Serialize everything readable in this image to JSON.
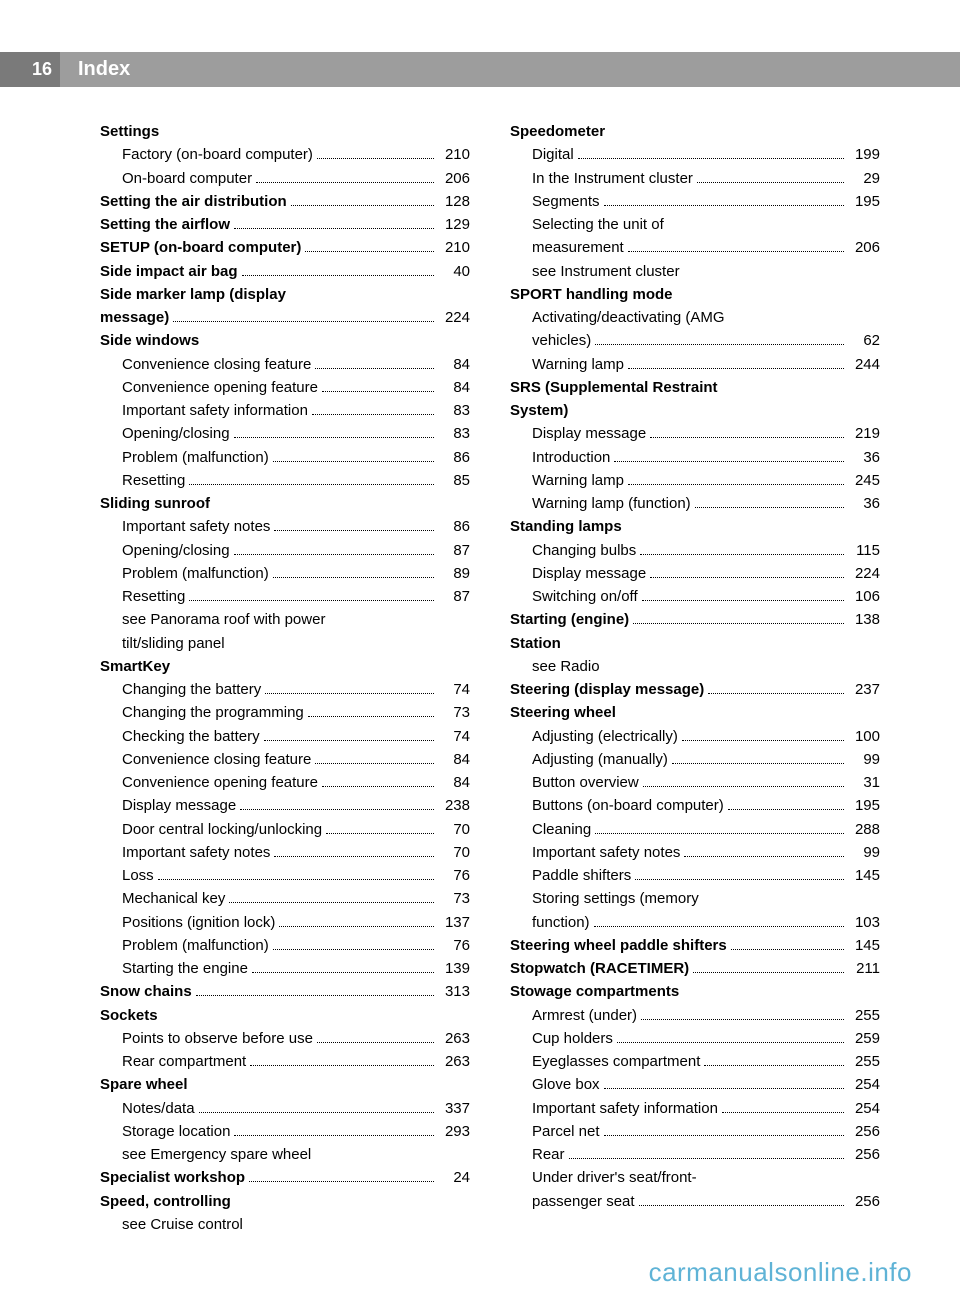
{
  "header": {
    "page_number": "16",
    "title": "Index"
  },
  "footer": "carmanualsonline.info",
  "columns": [
    [
      {
        "type": "heading",
        "label": "Settings"
      },
      {
        "type": "sub",
        "label": "Factory (on-board computer)",
        "page": "210"
      },
      {
        "type": "sub",
        "label": "On-board computer",
        "page": "206"
      },
      {
        "type": "bold",
        "label": "Setting the air distribution",
        "page": "128"
      },
      {
        "type": "bold",
        "label": "Setting the airflow",
        "page": "129"
      },
      {
        "type": "bold",
        "label": "SETUP (on-board computer)",
        "page": "210"
      },
      {
        "type": "bold",
        "label": "Side impact air bag",
        "page": "40"
      },
      {
        "type": "bold-nl",
        "label": "Side marker lamp (display"
      },
      {
        "type": "bold",
        "label": "message)",
        "page": "224"
      },
      {
        "type": "heading",
        "label": "Side windows"
      },
      {
        "type": "sub",
        "label": "Convenience closing feature",
        "page": "84"
      },
      {
        "type": "sub",
        "label": "Convenience opening feature",
        "page": "84"
      },
      {
        "type": "sub",
        "label": "Important safety information",
        "page": "83"
      },
      {
        "type": "sub",
        "label": "Opening/closing",
        "page": "83"
      },
      {
        "type": "sub",
        "label": "Problem (malfunction)",
        "page": "86"
      },
      {
        "type": "sub",
        "label": "Resetting",
        "page": "85"
      },
      {
        "type": "heading",
        "label": "Sliding sunroof"
      },
      {
        "type": "sub",
        "label": "Important safety notes",
        "page": "86"
      },
      {
        "type": "sub",
        "label": "Opening/closing",
        "page": "87"
      },
      {
        "type": "sub",
        "label": "Problem (malfunction)",
        "page": "89"
      },
      {
        "type": "sub",
        "label": "Resetting",
        "page": "87"
      },
      {
        "type": "xref",
        "label": "see Panorama roof with power"
      },
      {
        "type": "xref",
        "label": "tilt/sliding panel"
      },
      {
        "type": "heading",
        "label": "SmartKey"
      },
      {
        "type": "sub",
        "label": "Changing the battery",
        "page": "74"
      },
      {
        "type": "sub",
        "label": "Changing the programming",
        "page": "73"
      },
      {
        "type": "sub",
        "label": "Checking the battery",
        "page": "74"
      },
      {
        "type": "sub",
        "label": "Convenience closing feature",
        "page": "84"
      },
      {
        "type": "sub",
        "label": "Convenience opening feature",
        "page": "84"
      },
      {
        "type": "sub",
        "label": "Display message",
        "page": "238"
      },
      {
        "type": "sub",
        "label": "Door central locking/unlocking",
        "page": "70"
      },
      {
        "type": "sub",
        "label": "Important safety notes",
        "page": "70"
      },
      {
        "type": "sub",
        "label": "Loss",
        "page": "76"
      },
      {
        "type": "sub",
        "label": "Mechanical key",
        "page": "73"
      },
      {
        "type": "sub",
        "label": "Positions (ignition lock)",
        "page": "137"
      },
      {
        "type": "sub",
        "label": "Problem (malfunction)",
        "page": "76"
      },
      {
        "type": "sub",
        "label": "Starting the engine",
        "page": "139"
      },
      {
        "type": "bold",
        "label": "Snow chains",
        "page": "313"
      },
      {
        "type": "heading",
        "label": "Sockets"
      },
      {
        "type": "sub",
        "label": "Points to observe before use",
        "page": "263"
      },
      {
        "type": "sub",
        "label": "Rear compartment",
        "page": "263"
      },
      {
        "type": "heading",
        "label": "Spare wheel"
      },
      {
        "type": "sub",
        "label": "Notes/data",
        "page": "337"
      },
      {
        "type": "sub",
        "label": "Storage location",
        "page": "293"
      },
      {
        "type": "xref",
        "label": "see Emergency spare wheel"
      },
      {
        "type": "bold",
        "label": "Specialist workshop",
        "page": "24"
      },
      {
        "type": "heading",
        "label": "Speed, controlling"
      },
      {
        "type": "xref",
        "label": "see Cruise control"
      }
    ],
    [
      {
        "type": "heading",
        "label": "Speedometer"
      },
      {
        "type": "sub",
        "label": "Digital",
        "page": "199"
      },
      {
        "type": "sub",
        "label": "In the Instrument cluster",
        "page": "29"
      },
      {
        "type": "sub",
        "label": "Segments",
        "page": "195"
      },
      {
        "type": "sub-nl",
        "label": "Selecting the unit of"
      },
      {
        "type": "sub",
        "label": "measurement",
        "page": "206"
      },
      {
        "type": "xref",
        "label": "see Instrument cluster"
      },
      {
        "type": "heading",
        "label": "SPORT handling mode"
      },
      {
        "type": "sub-nl",
        "label": "Activating/deactivating (AMG"
      },
      {
        "type": "sub",
        "label": "vehicles)",
        "page": "62"
      },
      {
        "type": "sub",
        "label": "Warning lamp",
        "page": "244"
      },
      {
        "type": "bold-nl",
        "label": "SRS (Supplemental Restraint"
      },
      {
        "type": "heading",
        "label": "System)"
      },
      {
        "type": "sub",
        "label": "Display message",
        "page": "219"
      },
      {
        "type": "sub",
        "label": "Introduction",
        "page": "36"
      },
      {
        "type": "sub",
        "label": "Warning lamp",
        "page": "245"
      },
      {
        "type": "sub",
        "label": "Warning lamp (function)",
        "page": "36"
      },
      {
        "type": "heading",
        "label": "Standing lamps"
      },
      {
        "type": "sub",
        "label": "Changing bulbs",
        "page": "115"
      },
      {
        "type": "sub",
        "label": "Display message",
        "page": "224"
      },
      {
        "type": "sub",
        "label": "Switching on/off",
        "page": "106"
      },
      {
        "type": "bold",
        "label": "Starting (engine)",
        "page": "138"
      },
      {
        "type": "heading",
        "label": "Station"
      },
      {
        "type": "xref",
        "label": "see Radio"
      },
      {
        "type": "bold",
        "label": "Steering (display message)",
        "page": "237"
      },
      {
        "type": "heading",
        "label": "Steering wheel"
      },
      {
        "type": "sub",
        "label": "Adjusting (electrically)",
        "page": "100"
      },
      {
        "type": "sub",
        "label": "Adjusting (manually)",
        "page": "99"
      },
      {
        "type": "sub",
        "label": "Button overview",
        "page": "31"
      },
      {
        "type": "sub",
        "label": "Buttons (on-board computer)",
        "page": "195"
      },
      {
        "type": "sub",
        "label": "Cleaning",
        "page": "288"
      },
      {
        "type": "sub",
        "label": "Important safety notes",
        "page": "99"
      },
      {
        "type": "sub",
        "label": "Paddle shifters",
        "page": "145"
      },
      {
        "type": "sub-nl",
        "label": "Storing settings (memory"
      },
      {
        "type": "sub",
        "label": "function)",
        "page": "103"
      },
      {
        "type": "bold",
        "label": "Steering wheel paddle shifters",
        "page": "145"
      },
      {
        "type": "bold",
        "label": "Stopwatch (RACETIMER)",
        "page": "211"
      },
      {
        "type": "heading",
        "label": "Stowage compartments"
      },
      {
        "type": "sub",
        "label": "Armrest (under)",
        "page": "255"
      },
      {
        "type": "sub",
        "label": "Cup holders",
        "page": "259"
      },
      {
        "type": "sub",
        "label": "Eyeglasses compartment",
        "page": "255"
      },
      {
        "type": "sub",
        "label": "Glove box",
        "page": "254"
      },
      {
        "type": "sub",
        "label": "Important safety information",
        "page": "254"
      },
      {
        "type": "sub",
        "label": "Parcel net",
        "page": "256"
      },
      {
        "type": "sub",
        "label": "Rear",
        "page": "256"
      },
      {
        "type": "sub-nl",
        "label": "Under driver's seat/front-"
      },
      {
        "type": "sub",
        "label": "passenger seat",
        "page": "256"
      }
    ]
  ]
}
